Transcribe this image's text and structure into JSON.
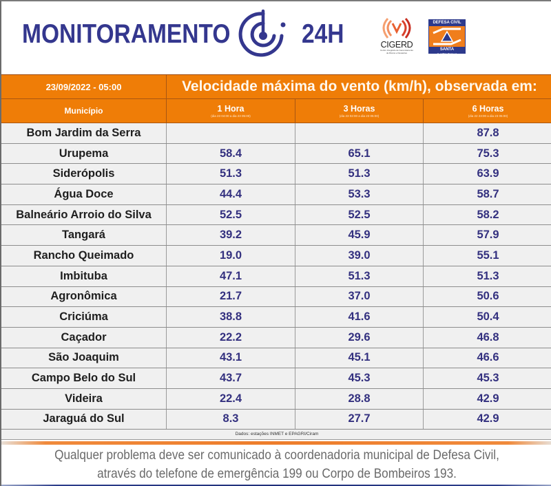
{
  "header": {
    "title": "MONITORAMENTO",
    "title_suffix": "24H",
    "logo_icon": "radar-monitor-icon",
    "partners": [
      {
        "name": "CIGERD",
        "subtitle": "Centro Integrado de Gerenciamento de Riscos e Desastres",
        "icon": "signal-waves-icon"
      },
      {
        "name": "Defesa Civil Santa Catarina",
        "top_text": "DEFESA CIVIL",
        "bottom_text": "SANTA CATARINA",
        "icon": "civil-defense-triangle-icon"
      }
    ]
  },
  "table": {
    "datetime": "23/09/2022 - 05:00",
    "title": "Velocidade máxima do vento (km/h), observada em:",
    "municipio_header": "Município",
    "columns": [
      {
        "label": "1 Hora",
        "range": "(dia 23 04:00 a dia 23 05:00)"
      },
      {
        "label": "3 Horas",
        "range": "(dia 23 02:00 a dia 23 05:00)"
      },
      {
        "label": "6 Horas",
        "range": "(dia 22 23:00 a dia 23 05:00)"
      }
    ],
    "rows": [
      {
        "municipio": "Bom Jardim da Serra",
        "h1": "",
        "h3": "",
        "h6": "87.8"
      },
      {
        "municipio": "Urupema",
        "h1": "58.4",
        "h3": "65.1",
        "h6": "75.3"
      },
      {
        "municipio": "Siderópolis",
        "h1": "51.3",
        "h3": "51.3",
        "h6": "63.9"
      },
      {
        "municipio": "Água Doce",
        "h1": "44.4",
        "h3": "53.3",
        "h6": "58.7"
      },
      {
        "municipio": "Balneário Arroio do Silva",
        "h1": "52.5",
        "h3": "52.5",
        "h6": "58.2"
      },
      {
        "municipio": "Tangará",
        "h1": "39.2",
        "h3": "45.9",
        "h6": "57.9"
      },
      {
        "municipio": "Rancho Queimado",
        "h1": "19.0",
        "h3": "39.0",
        "h6": "55.1"
      },
      {
        "municipio": "Imbituba",
        "h1": "47.1",
        "h3": "51.3",
        "h6": "51.3"
      },
      {
        "municipio": "Agronômica",
        "h1": "21.7",
        "h3": "37.0",
        "h6": "50.6"
      },
      {
        "municipio": "Criciúma",
        "h1": "38.8",
        "h3": "41.6",
        "h6": "50.4"
      },
      {
        "municipio": "Caçador",
        "h1": "22.2",
        "h3": "29.6",
        "h6": "46.8"
      },
      {
        "municipio": "São Joaquim",
        "h1": "43.1",
        "h3": "45.1",
        "h6": "46.6"
      },
      {
        "municipio": "Campo Belo do Sul",
        "h1": "43.7",
        "h3": "45.3",
        "h6": "45.3"
      },
      {
        "municipio": "Videira",
        "h1": "22.4",
        "h3": "28.8",
        "h6": "42.9"
      },
      {
        "municipio": "Jaraguá do Sul",
        "h1": "8.3",
        "h3": "27.7",
        "h6": "42.9"
      }
    ],
    "source": "Dados: estações INMET e EPAGRI/Ciram"
  },
  "footer": {
    "line1": "Qualquer problema deve ser comunicado à coordenadoria municipal de Defesa Civil,",
    "line2": "através do telefone de emergência 199 ou Corpo de Bombeiros 193."
  },
  "colors": {
    "brand_blue": "#34378e",
    "header_orange": "#ef7d07",
    "value_blue": "#33307f",
    "row_bg": "#f0f0f0"
  }
}
